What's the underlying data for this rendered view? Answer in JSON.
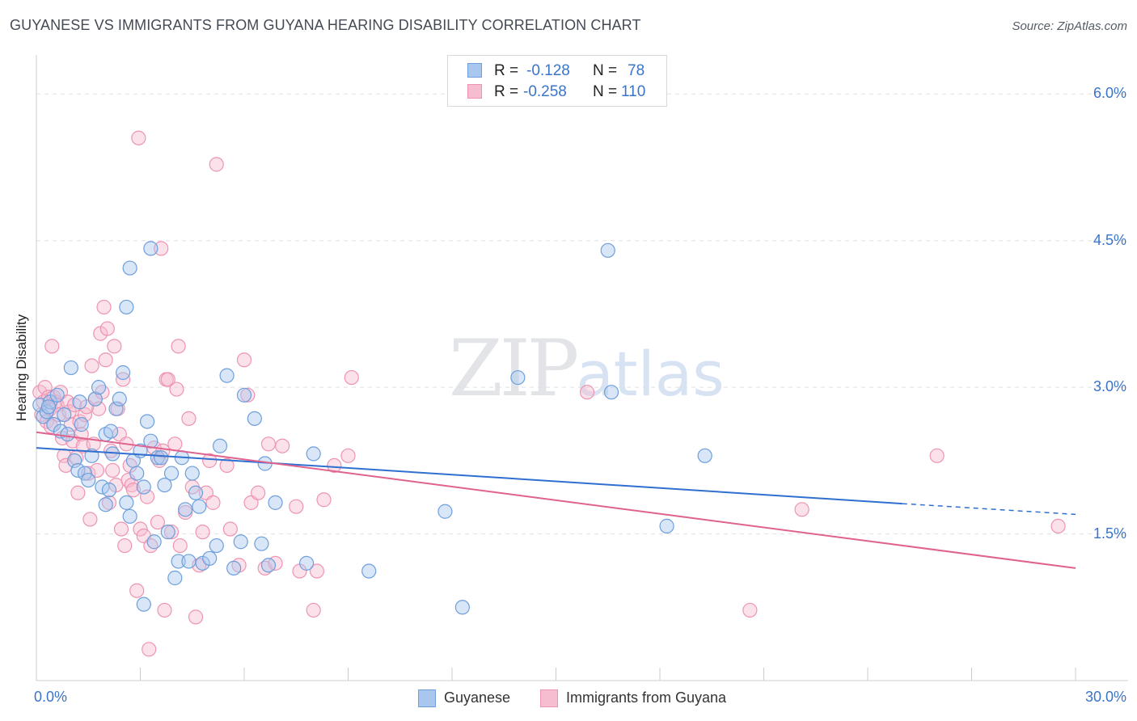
{
  "title": "GUYANESE VS IMMIGRANTS FROM GUYANA HEARING DISABILITY CORRELATION CHART",
  "source": "Source: ZipAtlas.com",
  "watermark": {
    "zip": "ZIP",
    "atlas": "atlas"
  },
  "legend": {
    "rows": [
      {
        "r_label": "R =",
        "r_value": "-0.128",
        "n_label": "N =",
        "n_value": "78"
      },
      {
        "r_label": "R =",
        "r_value": "-0.258",
        "n_label": "N =",
        "n_value": "110"
      }
    ]
  },
  "bottom_legend": [
    "Guyanese",
    "Immigrants from Guyana"
  ],
  "colors": {
    "blue_fill": "#a9c7ee",
    "blue_stroke": "#6e9fdc",
    "blue_line": "#2f6fd0",
    "pink_fill": "#f6bcd0",
    "pink_stroke": "#ee94b3",
    "pink_line": "#e0628e",
    "tick_text": "#3a74c9",
    "grid": "#dde0e4"
  },
  "chart_data": {
    "type": "scatter",
    "title": "GUYANESE VS IMMIGRANTS FROM GUYANA HEARING DISABILITY CORRELATION CHART",
    "xlabel": "",
    "ylabel": "Hearing Disability",
    "xlim": [
      0,
      30
    ],
    "ylim": [
      0,
      6.3
    ],
    "x_tick_labels": [
      "0.0%",
      "30.0%"
    ],
    "y_ticks": [
      1.5,
      3.0,
      4.5,
      6.0
    ],
    "y_tick_labels": [
      "1.5%",
      "3.0%",
      "4.5%",
      "6.0%"
    ],
    "grid": true,
    "legend_placement": "top-center",
    "series": [
      {
        "name": "Guyanese",
        "r": -0.128,
        "n": 78,
        "trend": {
          "x0": 0.0,
          "y0": 2.38,
          "x1": 25.0,
          "y1": 1.81,
          "dash_to_x": 30.0,
          "dash_to_y": 1.7
        },
        "points": [
          [
            0.1,
            2.82
          ],
          [
            0.2,
            2.7
          ],
          [
            0.3,
            2.75
          ],
          [
            0.4,
            2.85
          ],
          [
            0.5,
            2.62
          ],
          [
            0.6,
            2.92
          ],
          [
            0.7,
            2.55
          ],
          [
            0.8,
            2.72
          ],
          [
            0.9,
            2.52
          ],
          [
            1.0,
            3.2
          ],
          [
            1.1,
            2.25
          ],
          [
            1.2,
            2.15
          ],
          [
            1.3,
            2.62
          ],
          [
            1.4,
            2.12
          ],
          [
            1.5,
            2.05
          ],
          [
            1.6,
            2.3
          ],
          [
            1.7,
            2.88
          ],
          [
            1.8,
            3.0
          ],
          [
            1.9,
            1.98
          ],
          [
            2.0,
            2.52
          ],
          [
            2.0,
            1.8
          ],
          [
            2.1,
            1.95
          ],
          [
            2.2,
            2.32
          ],
          [
            2.3,
            2.78
          ],
          [
            2.4,
            2.88
          ],
          [
            2.5,
            3.15
          ],
          [
            2.6,
            1.82
          ],
          [
            2.6,
            3.82
          ],
          [
            2.7,
            1.68
          ],
          [
            2.7,
            4.22
          ],
          [
            2.8,
            2.25
          ],
          [
            2.9,
            2.12
          ],
          [
            3.0,
            2.35
          ],
          [
            3.1,
            1.98
          ],
          [
            3.1,
            0.78
          ],
          [
            3.2,
            2.65
          ],
          [
            3.3,
            2.45
          ],
          [
            3.3,
            4.42
          ],
          [
            3.4,
            1.42
          ],
          [
            3.5,
            2.28
          ],
          [
            3.6,
            2.28
          ],
          [
            3.7,
            2.0
          ],
          [
            3.8,
            1.52
          ],
          [
            3.9,
            2.12
          ],
          [
            4.0,
            1.05
          ],
          [
            4.1,
            1.22
          ],
          [
            4.2,
            2.28
          ],
          [
            4.3,
            1.75
          ],
          [
            4.4,
            1.22
          ],
          [
            4.5,
            2.12
          ],
          [
            4.6,
            1.92
          ],
          [
            4.7,
            1.78
          ],
          [
            4.8,
            1.2
          ],
          [
            5.0,
            1.25
          ],
          [
            5.2,
            1.38
          ],
          [
            5.3,
            2.4
          ],
          [
            5.5,
            3.12
          ],
          [
            5.7,
            1.15
          ],
          [
            5.9,
            1.42
          ],
          [
            6.0,
            2.92
          ],
          [
            6.3,
            2.68
          ],
          [
            6.5,
            1.4
          ],
          [
            6.6,
            2.22
          ],
          [
            6.7,
            1.18
          ],
          [
            6.9,
            1.82
          ],
          [
            7.8,
            1.2
          ],
          [
            8.0,
            2.32
          ],
          [
            9.6,
            1.12
          ],
          [
            11.8,
            1.73
          ],
          [
            12.3,
            0.75
          ],
          [
            13.9,
            3.1
          ],
          [
            16.5,
            4.4
          ],
          [
            16.6,
            2.95
          ],
          [
            18.2,
            1.58
          ],
          [
            19.3,
            2.3
          ],
          [
            0.35,
            2.8
          ],
          [
            1.25,
            2.85
          ],
          [
            2.15,
            2.55
          ]
        ]
      },
      {
        "name": "Immigrants from Guyana",
        "r": -0.258,
        "n": 110,
        "trend": {
          "x0": 0.0,
          "y0": 2.54,
          "x1": 30.0,
          "y1": 1.15
        },
        "points": [
          [
            0.1,
            2.95
          ],
          [
            0.15,
            2.72
          ],
          [
            0.2,
            2.85
          ],
          [
            0.25,
            3.0
          ],
          [
            0.3,
            2.65
          ],
          [
            0.35,
            2.9
          ],
          [
            0.4,
            2.78
          ],
          [
            0.45,
            3.42
          ],
          [
            0.5,
            2.9
          ],
          [
            0.55,
            2.85
          ],
          [
            0.6,
            2.82
          ],
          [
            0.65,
            2.72
          ],
          [
            0.7,
            2.95
          ],
          [
            0.75,
            2.48
          ],
          [
            0.8,
            2.3
          ],
          [
            0.85,
            2.2
          ],
          [
            0.9,
            2.85
          ],
          [
            0.95,
            2.75
          ],
          [
            1.0,
            2.62
          ],
          [
            1.05,
            2.45
          ],
          [
            1.1,
            2.82
          ],
          [
            1.15,
            2.28
          ],
          [
            1.2,
            1.92
          ],
          [
            1.25,
            2.65
          ],
          [
            1.3,
            2.52
          ],
          [
            1.35,
            2.4
          ],
          [
            1.4,
            2.72
          ],
          [
            1.5,
            2.12
          ],
          [
            1.55,
            1.65
          ],
          [
            1.6,
            3.22
          ],
          [
            1.65,
            2.42
          ],
          [
            1.7,
            2.88
          ],
          [
            1.75,
            2.15
          ],
          [
            1.8,
            2.78
          ],
          [
            1.85,
            3.55
          ],
          [
            1.9,
            2.95
          ],
          [
            1.95,
            3.82
          ],
          [
            2.0,
            3.28
          ],
          [
            2.05,
            3.6
          ],
          [
            2.1,
            1.82
          ],
          [
            2.15,
            2.35
          ],
          [
            2.2,
            2.15
          ],
          [
            2.25,
            3.42
          ],
          [
            2.3,
            2.0
          ],
          [
            2.35,
            2.78
          ],
          [
            2.4,
            2.52
          ],
          [
            2.45,
            1.55
          ],
          [
            2.5,
            3.08
          ],
          [
            2.55,
            1.38
          ],
          [
            2.6,
            2.42
          ],
          [
            2.65,
            2.05
          ],
          [
            2.7,
            2.2
          ],
          [
            2.75,
            2.0
          ],
          [
            2.8,
            1.95
          ],
          [
            2.9,
            0.92
          ],
          [
            2.95,
            5.55
          ],
          [
            3.0,
            1.55
          ],
          [
            3.1,
            1.48
          ],
          [
            3.2,
            1.88
          ],
          [
            3.25,
            0.32
          ],
          [
            3.3,
            1.38
          ],
          [
            3.4,
            2.38
          ],
          [
            3.5,
            1.62
          ],
          [
            3.55,
            2.25
          ],
          [
            3.6,
            4.42
          ],
          [
            3.65,
            2.35
          ],
          [
            3.7,
            0.72
          ],
          [
            3.75,
            3.08
          ],
          [
            3.8,
            3.08
          ],
          [
            3.9,
            1.52
          ],
          [
            4.0,
            2.42
          ],
          [
            4.05,
            2.98
          ],
          [
            4.1,
            3.42
          ],
          [
            4.15,
            1.38
          ],
          [
            4.3,
            1.72
          ],
          [
            4.4,
            2.68
          ],
          [
            4.5,
            1.98
          ],
          [
            4.6,
            0.65
          ],
          [
            4.7,
            1.18
          ],
          [
            4.8,
            1.52
          ],
          [
            4.9,
            1.92
          ],
          [
            5.0,
            2.25
          ],
          [
            5.1,
            1.82
          ],
          [
            5.2,
            5.28
          ],
          [
            5.5,
            2.2
          ],
          [
            5.6,
            1.55
          ],
          [
            5.85,
            1.18
          ],
          [
            6.0,
            3.28
          ],
          [
            6.1,
            2.92
          ],
          [
            6.2,
            1.82
          ],
          [
            6.4,
            1.92
          ],
          [
            6.6,
            1.15
          ],
          [
            6.7,
            2.42
          ],
          [
            6.9,
            1.2
          ],
          [
            7.1,
            2.4
          ],
          [
            7.5,
            1.78
          ],
          [
            7.6,
            1.12
          ],
          [
            8.1,
            1.12
          ],
          [
            8.3,
            1.85
          ],
          [
            8.6,
            2.2
          ],
          [
            8.0,
            0.72
          ],
          [
            9.1,
            3.1
          ],
          [
            9.0,
            2.3
          ],
          [
            15.9,
            2.95
          ],
          [
            20.6,
            0.72
          ],
          [
            22.1,
            1.75
          ],
          [
            26.0,
            2.3
          ],
          [
            29.5,
            1.58
          ],
          [
            0.42,
            2.6
          ],
          [
            1.45,
            2.8
          ]
        ]
      }
    ]
  }
}
